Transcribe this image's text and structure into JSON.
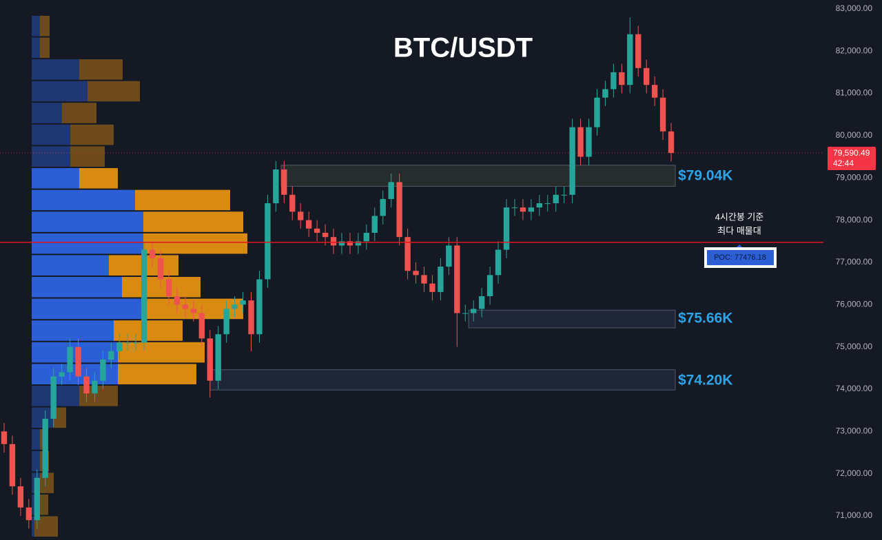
{
  "chart_data": {
    "type": "candlestick",
    "title": "BTC/USDT",
    "ylim": [
      70430,
      83210
    ],
    "yticks": [
      {
        "value": 71000,
        "label": "71,000.00"
      },
      {
        "value": 72000,
        "label": "72,000.00"
      },
      {
        "value": 73000,
        "label": "73,000.00"
      },
      {
        "value": 74000,
        "label": "74,000.00"
      },
      {
        "value": 75000,
        "label": "75,000.00"
      },
      {
        "value": 76000,
        "label": "76,000.00"
      },
      {
        "value": 77000,
        "label": "77,000.00"
      },
      {
        "value": 78000,
        "label": "78,000.00"
      },
      {
        "value": 79000,
        "label": "79,000.00"
      },
      {
        "value": 80000,
        "label": "80,000.00"
      },
      {
        "value": 81000,
        "label": "81,000.00"
      },
      {
        "value": 82000,
        "label": "82,000.00"
      },
      {
        "value": 83000,
        "label": "83,000.00"
      }
    ],
    "up_color": "#26a69a",
    "down_color": "#ef5350",
    "open": [
      73000,
      72700,
      71700,
      71200,
      70900,
      71900,
      73300,
      74300,
      74400,
      75000,
      74300,
      73900,
      74200,
      74700,
      74900,
      75100,
      75100,
      75100,
      77300,
      77100,
      76600,
      76200,
      76000,
      75900,
      75800,
      75200,
      74200,
      75300,
      75900,
      76000,
      76100,
      75300,
      76600,
      78400,
      79200,
      78600,
      78200,
      78000,
      77800,
      77700,
      77600,
      77400,
      77500,
      77400,
      77500,
      77700,
      78100,
      78500,
      78900,
      77600,
      76800,
      76700,
      76500,
      76300,
      76900,
      77400,
      75800,
      75800,
      75900,
      76200,
      76700,
      77300,
      78300,
      78300,
      78200,
      78300,
      78400,
      78400,
      78600,
      78600,
      80200,
      79500,
      80200,
      80900,
      81100,
      81500,
      81200,
      82400,
      81600,
      81200,
      80900,
      80100
    ],
    "high": [
      73200,
      72900,
      71900,
      71400,
      72100,
      73500,
      74500,
      74600,
      75200,
      75200,
      74500,
      74400,
      74900,
      75100,
      75300,
      75300,
      75300,
      77500,
      77500,
      77300,
      76800,
      76400,
      76200,
      76100,
      76000,
      75400,
      75500,
      76100,
      76200,
      76300,
      76300,
      76800,
      78600,
      79400,
      79400,
      78800,
      78400,
      78200,
      78000,
      77900,
      77800,
      77700,
      77700,
      77700,
      77900,
      78300,
      78700,
      79100,
      79100,
      77800,
      77000,
      76900,
      76700,
      77100,
      77600,
      77600,
      76000,
      76100,
      76400,
      76900,
      77500,
      78500,
      78500,
      78500,
      78500,
      78600,
      78600,
      78800,
      78800,
      80400,
      80400,
      80400,
      81100,
      81300,
      81700,
      81700,
      82800,
      82600,
      81800,
      81400,
      81100,
      80300
    ],
    "low": [
      72500,
      71500,
      71000,
      70700,
      70700,
      71700,
      73100,
      74100,
      74200,
      74100,
      73700,
      73700,
      74000,
      74500,
      74700,
      74900,
      74900,
      74900,
      76900,
      76400,
      76000,
      75800,
      75700,
      75600,
      75000,
      73800,
      74000,
      75100,
      75700,
      75800,
      74900,
      75100,
      76400,
      78200,
      78400,
      78000,
      77800,
      77600,
      77500,
      77400,
      77200,
      77200,
      77200,
      77200,
      77300,
      77500,
      77900,
      78300,
      77400,
      76600,
      76500,
      76300,
      76100,
      76100,
      76700,
      75000,
      75600,
      75600,
      75700,
      76000,
      76500,
      77100,
      78100,
      78000,
      78000,
      78100,
      78200,
      78200,
      78400,
      78400,
      79300,
      79300,
      80000,
      80700,
      80900,
      81000,
      81000,
      81400,
      81000,
      80700,
      79900,
      79390
    ],
    "close": [
      72700,
      71700,
      71200,
      70900,
      71900,
      73300,
      74300,
      74400,
      75000,
      74300,
      73900,
      74200,
      74700,
      74900,
      75100,
      75100,
      75100,
      77300,
      77100,
      76600,
      76200,
      76000,
      75900,
      75800,
      75200,
      74200,
      75300,
      75900,
      76000,
      76100,
      75300,
      76600,
      78400,
      79200,
      78600,
      78200,
      78000,
      77800,
      77700,
      77600,
      77400,
      77500,
      77400,
      77500,
      77700,
      78100,
      78500,
      78900,
      77600,
      76800,
      76700,
      76500,
      76300,
      76900,
      77400,
      75800,
      75800,
      75900,
      76200,
      76700,
      77300,
      78300,
      78300,
      78200,
      78300,
      78400,
      78400,
      78600,
      78600,
      80200,
      79500,
      80200,
      80900,
      81100,
      81500,
      81200,
      82400,
      81600,
      81200,
      80900,
      80100,
      79590
    ],
    "profile": {
      "bins": [
        82853,
        82338,
        81823,
        81308,
        80793,
        80278,
        79763,
        79248,
        78733,
        78218,
        77703,
        77188,
        76673,
        76158,
        75643,
        75128,
        74613,
        74098,
        73583,
        73068,
        72553,
        72038,
        71523,
        71008,
        70493
      ],
      "buy": [
        12,
        12,
        69,
        81,
        44,
        56,
        56,
        69,
        150,
        162,
        162,
        112,
        131,
        162,
        119,
        125,
        125,
        69,
        31,
        12,
        12,
        12,
        4,
        4
      ],
      "sell": [
        14,
        14,
        63,
        76,
        50,
        63,
        50,
        56,
        138,
        145,
        151,
        101,
        114,
        145,
        100,
        126,
        114,
        56,
        19,
        7,
        13,
        20,
        20,
        34
      ],
      "value_area": [
        74098,
        79248
      ],
      "buy_color": "#2c5fd6",
      "sell_color": "#d98a12"
    },
    "levels": [
      {
        "value": 79040,
        "label": "$79.04K",
        "low": 78800,
        "high": 79300
      },
      {
        "value": 75660,
        "label": "$75.66K",
        "low": 75450,
        "high": 75870
      },
      {
        "value": 74200,
        "label": "$74.20K",
        "low": 73980,
        "high": 74460
      }
    ],
    "poc": {
      "value": 77476.18,
      "label": "POC: 77476.18",
      "color": "#e0161e"
    },
    "annotation": [
      "4시간봉 기준",
      "최다 매물대"
    ],
    "last_price": {
      "value": 79590.49,
      "label": "79,590.49",
      "countdown": "42:44",
      "color": "#f23645"
    }
  }
}
